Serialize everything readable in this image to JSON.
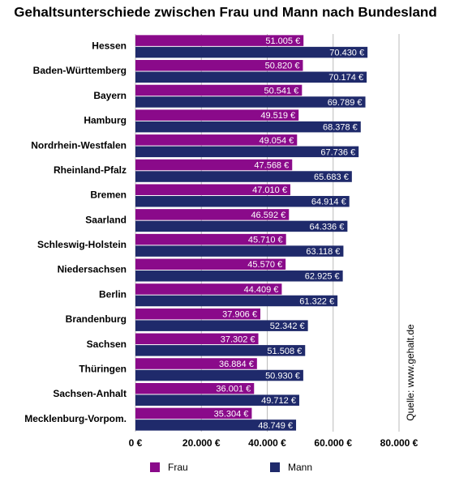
{
  "chart_data": {
    "type": "bar",
    "orientation": "horizontal",
    "title": "Gehaltsunterschiede zwischen Frau und Mann nach Bundesland",
    "annotation": "Quelle: www.gehalt.de",
    "categories": [
      "Hessen",
      "Baden-Württemberg",
      "Bayern",
      "Hamburg",
      "Nordrhein-Westfalen",
      "Rheinland-Pfalz",
      "Bremen",
      "Saarland",
      "Schleswig-Holstein",
      "Niedersachsen",
      "Berlin",
      "Brandenburg",
      "Sachsen",
      "Thüringen",
      "Sachsen-Anhalt",
      "Mecklenburg-Vorpom."
    ],
    "series": [
      {
        "name": "Frau",
        "color": "#8a0a8a",
        "values": [
          51005,
          50820,
          50541,
          49519,
          49054,
          47568,
          47010,
          46592,
          45710,
          45570,
          44409,
          37906,
          37302,
          36884,
          36001,
          35304
        ],
        "value_labels": [
          "51.005 €",
          "50.820 €",
          "50.541 €",
          "49.519 €",
          "49.054 €",
          "47.568 €",
          "47.010 €",
          "46.592 €",
          "45.710 €",
          "45.570 €",
          "44.409 €",
          "37.906 €",
          "37.302 €",
          "36.884 €",
          "36.001 €",
          "35.304 €"
        ]
      },
      {
        "name": "Mann",
        "color": "#1f2a6b",
        "values": [
          70430,
          70174,
          69789,
          68378,
          67736,
          65683,
          64914,
          64336,
          63118,
          62925,
          61322,
          52342,
          51508,
          50930,
          49712,
          48749
        ],
        "value_labels": [
          "70.430 €",
          "70.174 €",
          "69.789 €",
          "68.378 €",
          "67.736 €",
          "65.683 €",
          "64.914 €",
          "64.336 €",
          "63.118 €",
          "62.925 €",
          "61.322 €",
          "52.342 €",
          "51.508 €",
          "50.930 €",
          "49.712 €",
          "48.749 €"
        ]
      }
    ],
    "xlim": [
      0,
      80000
    ],
    "xticks": [
      {
        "value": 0,
        "label": "0 €"
      },
      {
        "value": 20000,
        "label": "20.000 €"
      },
      {
        "value": 40000,
        "label": "40.000 €"
      },
      {
        "value": 60000,
        "label": "60.000 €"
      },
      {
        "value": 80000,
        "label": "80.000 €"
      }
    ],
    "grid": true,
    "legend": "bottom"
  }
}
